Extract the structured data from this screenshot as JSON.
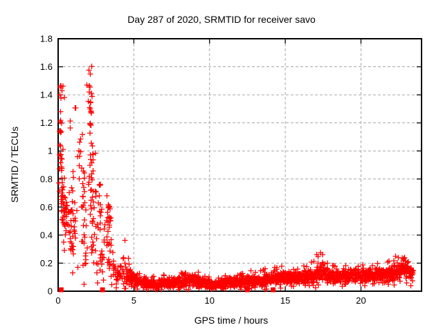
{
  "chart_data": {
    "type": "scatter",
    "title": "Day 287 of 2020, SRMTID for receiver savo",
    "xlabel": "GPS time / hours",
    "ylabel": "SRMTID / TECUs",
    "xlim": [
      0,
      24
    ],
    "ylim": [
      0,
      1.8
    ],
    "xtick_values": [
      0,
      5,
      10,
      15,
      20
    ],
    "xtick_labels": [
      "0",
      "5",
      "10",
      "15",
      "20"
    ],
    "ytick_values": [
      0,
      0.2,
      0.4,
      0.6,
      0.8,
      1.0,
      1.2,
      1.4,
      1.6,
      1.8
    ],
    "ytick_labels": [
      "0",
      "0.2",
      "0.4",
      "0.6",
      "0.8",
      "1",
      "1.2",
      "1.4",
      "1.6",
      "1.8"
    ],
    "grid": true,
    "legend_position": "none",
    "background_color": "#ffffff",
    "axis_color": "#000000",
    "grid_color": "#a6a6a6",
    "marker": {
      "shape": "plus",
      "color": "#ff0000",
      "size": 8
    },
    "zero_row_markers": {
      "shape": "filled-square",
      "color": "#ff0000",
      "size": 7,
      "x": [
        0.2,
        2.93,
        12.5,
        14.2
      ],
      "y": 0.01
    },
    "summary": "SRMTID scatter vs GPS time: large scatter 0.1-1.6 TECUs during hours 0-4.5 (peak cluster ~1.6 near hour 2, secondary highs ~1.45 near hour 0), collapsing to a dense low band ~0.02-0.2 TECUs from hour 4.5 to 23.5, with upward bumps to ~0.28 near hours 17.3 and 22.8; isolated baseline square markers at hours 0.2, 2.93, 12.5 and 14.2.",
    "scatter_generation": {
      "seed": 1287,
      "blobs_format": [
        "center_x_hours",
        "center_y_tecus",
        "sigma_x",
        "sigma_y",
        "count"
      ],
      "blobs": [
        [
          0.15,
          1.41,
          0.06,
          0.035,
          4
        ],
        [
          0.3,
          1.46,
          0.12,
          0.02,
          2
        ],
        [
          0.13,
          1.22,
          0.05,
          0.045,
          7
        ],
        [
          0.2,
          1.06,
          0.07,
          0.04,
          5
        ],
        [
          0.17,
          0.96,
          0.06,
          0.035,
          6
        ],
        [
          0.2,
          0.84,
          0.09,
          0.05,
          10
        ],
        [
          0.28,
          0.7,
          0.11,
          0.06,
          12
        ],
        [
          0.3,
          0.55,
          0.11,
          0.06,
          10
        ],
        [
          0.38,
          0.43,
          0.1,
          0.05,
          7
        ],
        [
          0.52,
          0.63,
          0.1,
          0.07,
          9
        ],
        [
          0.55,
          0.48,
          0.09,
          0.05,
          7
        ],
        [
          0.75,
          0.55,
          0.12,
          0.09,
          11
        ],
        [
          0.85,
          0.4,
          0.12,
          0.07,
          9
        ],
        [
          0.9,
          0.72,
          0.09,
          0.06,
          6
        ],
        [
          1.0,
          0.3,
          0.1,
          0.05,
          7
        ],
        [
          1.05,
          0.52,
          0.1,
          0.07,
          7
        ],
        [
          0.78,
          1.17,
          0.04,
          0.03,
          2
        ],
        [
          1.1,
          1.3,
          0.04,
          0.03,
          2
        ],
        [
          1.35,
          0.95,
          0.07,
          0.05,
          4
        ],
        [
          1.5,
          1.1,
          0.05,
          0.04,
          2
        ],
        [
          1.6,
          0.88,
          0.1,
          0.08,
          8
        ],
        [
          1.65,
          0.65,
          0.12,
          0.08,
          9
        ],
        [
          1.7,
          0.42,
          0.12,
          0.08,
          9
        ],
        [
          1.75,
          0.23,
          0.09,
          0.04,
          6
        ],
        [
          2.05,
          1.58,
          0.1,
          0.02,
          4
        ],
        [
          2.0,
          1.47,
          0.08,
          0.025,
          3
        ],
        [
          2.15,
          1.39,
          0.1,
          0.018,
          3
        ],
        [
          2.2,
          1.3,
          0.08,
          0.035,
          8
        ],
        [
          2.1,
          1.21,
          0.06,
          0.025,
          4
        ],
        [
          2.2,
          1.05,
          0.08,
          0.045,
          5
        ],
        [
          2.25,
          0.92,
          0.1,
          0.05,
          8
        ],
        [
          2.2,
          0.78,
          0.09,
          0.045,
          7
        ],
        [
          2.3,
          0.62,
          0.1,
          0.055,
          9
        ],
        [
          2.35,
          0.45,
          0.1,
          0.06,
          9
        ],
        [
          2.3,
          0.28,
          0.09,
          0.045,
          6
        ],
        [
          2.75,
          0.55,
          0.13,
          0.09,
          10
        ],
        [
          2.8,
          0.35,
          0.13,
          0.07,
          10
        ],
        [
          2.85,
          0.2,
          0.12,
          0.045,
          8
        ],
        [
          2.7,
          0.74,
          0.08,
          0.04,
          4
        ],
        [
          3.3,
          0.5,
          0.1,
          0.07,
          13
        ],
        [
          3.35,
          0.35,
          0.1,
          0.05,
          10
        ],
        [
          3.3,
          0.61,
          0.08,
          0.035,
          6
        ],
        [
          3.4,
          0.22,
          0.09,
          0.04,
          7
        ],
        [
          3.65,
          0.15,
          0.12,
          0.05,
          11
        ],
        [
          3.9,
          0.12,
          0.12,
          0.045,
          11
        ],
        [
          4.1,
          0.17,
          0.12,
          0.05,
          9
        ],
        [
          4.25,
          0.1,
          0.12,
          0.04,
          10
        ],
        [
          4.45,
          0.25,
          0.07,
          0.05,
          5
        ]
      ],
      "outlier_points": [
        [
          1.72,
          0.05
        ],
        [
          2.6,
          0.06
        ],
        [
          0.95,
          0.13
        ],
        [
          1.3,
          0.17
        ],
        [
          3.0,
          0.08
        ],
        [
          2.55,
          0.13
        ],
        [
          4.45,
          0.02
        ],
        [
          0.4,
          1.38
        ]
      ],
      "band_profile_format": [
        "x_hours",
        "mean_tecus",
        "half_spread_tecus"
      ],
      "band_profile": [
        [
          4.5,
          0.115,
          0.07
        ],
        [
          5.0,
          0.085,
          0.05
        ],
        [
          5.5,
          0.06,
          0.04
        ],
        [
          6.0,
          0.05,
          0.032
        ],
        [
          6.5,
          0.052,
          0.034
        ],
        [
          7.0,
          0.055,
          0.036
        ],
        [
          7.5,
          0.06,
          0.04
        ],
        [
          8.0,
          0.065,
          0.045
        ],
        [
          8.4,
          0.08,
          0.05
        ],
        [
          8.8,
          0.075,
          0.048
        ],
        [
          9.2,
          0.068,
          0.042
        ],
        [
          9.6,
          0.06,
          0.04
        ],
        [
          10.0,
          0.046,
          0.032
        ],
        [
          10.4,
          0.042,
          0.03
        ],
        [
          10.8,
          0.052,
          0.035
        ],
        [
          11.2,
          0.06,
          0.04
        ],
        [
          11.7,
          0.065,
          0.04
        ],
        [
          12.2,
          0.065,
          0.042
        ],
        [
          12.7,
          0.072,
          0.045
        ],
        [
          13.2,
          0.076,
          0.046
        ],
        [
          13.7,
          0.082,
          0.05
        ],
        [
          14.2,
          0.086,
          0.05
        ],
        [
          14.7,
          0.09,
          0.052
        ],
        [
          15.2,
          0.095,
          0.053
        ],
        [
          15.7,
          0.092,
          0.055
        ],
        [
          16.2,
          0.1,
          0.055
        ],
        [
          16.7,
          0.105,
          0.058
        ],
        [
          17.0,
          0.12,
          0.07
        ],
        [
          17.3,
          0.16,
          0.1
        ],
        [
          17.6,
          0.12,
          0.062
        ],
        [
          18.0,
          0.1,
          0.052
        ],
        [
          18.5,
          0.096,
          0.05
        ],
        [
          19.0,
          0.105,
          0.055
        ],
        [
          19.5,
          0.11,
          0.055
        ],
        [
          20.0,
          0.105,
          0.055
        ],
        [
          20.5,
          0.11,
          0.057
        ],
        [
          21.0,
          0.115,
          0.058
        ],
        [
          21.5,
          0.12,
          0.06
        ],
        [
          22.0,
          0.122,
          0.065
        ],
        [
          22.4,
          0.14,
          0.08
        ],
        [
          22.8,
          0.17,
          0.09
        ],
        [
          23.05,
          0.15,
          0.08
        ],
        [
          23.45,
          0.11,
          0.055
        ]
      ],
      "band_points_per_hour": 95
    }
  }
}
